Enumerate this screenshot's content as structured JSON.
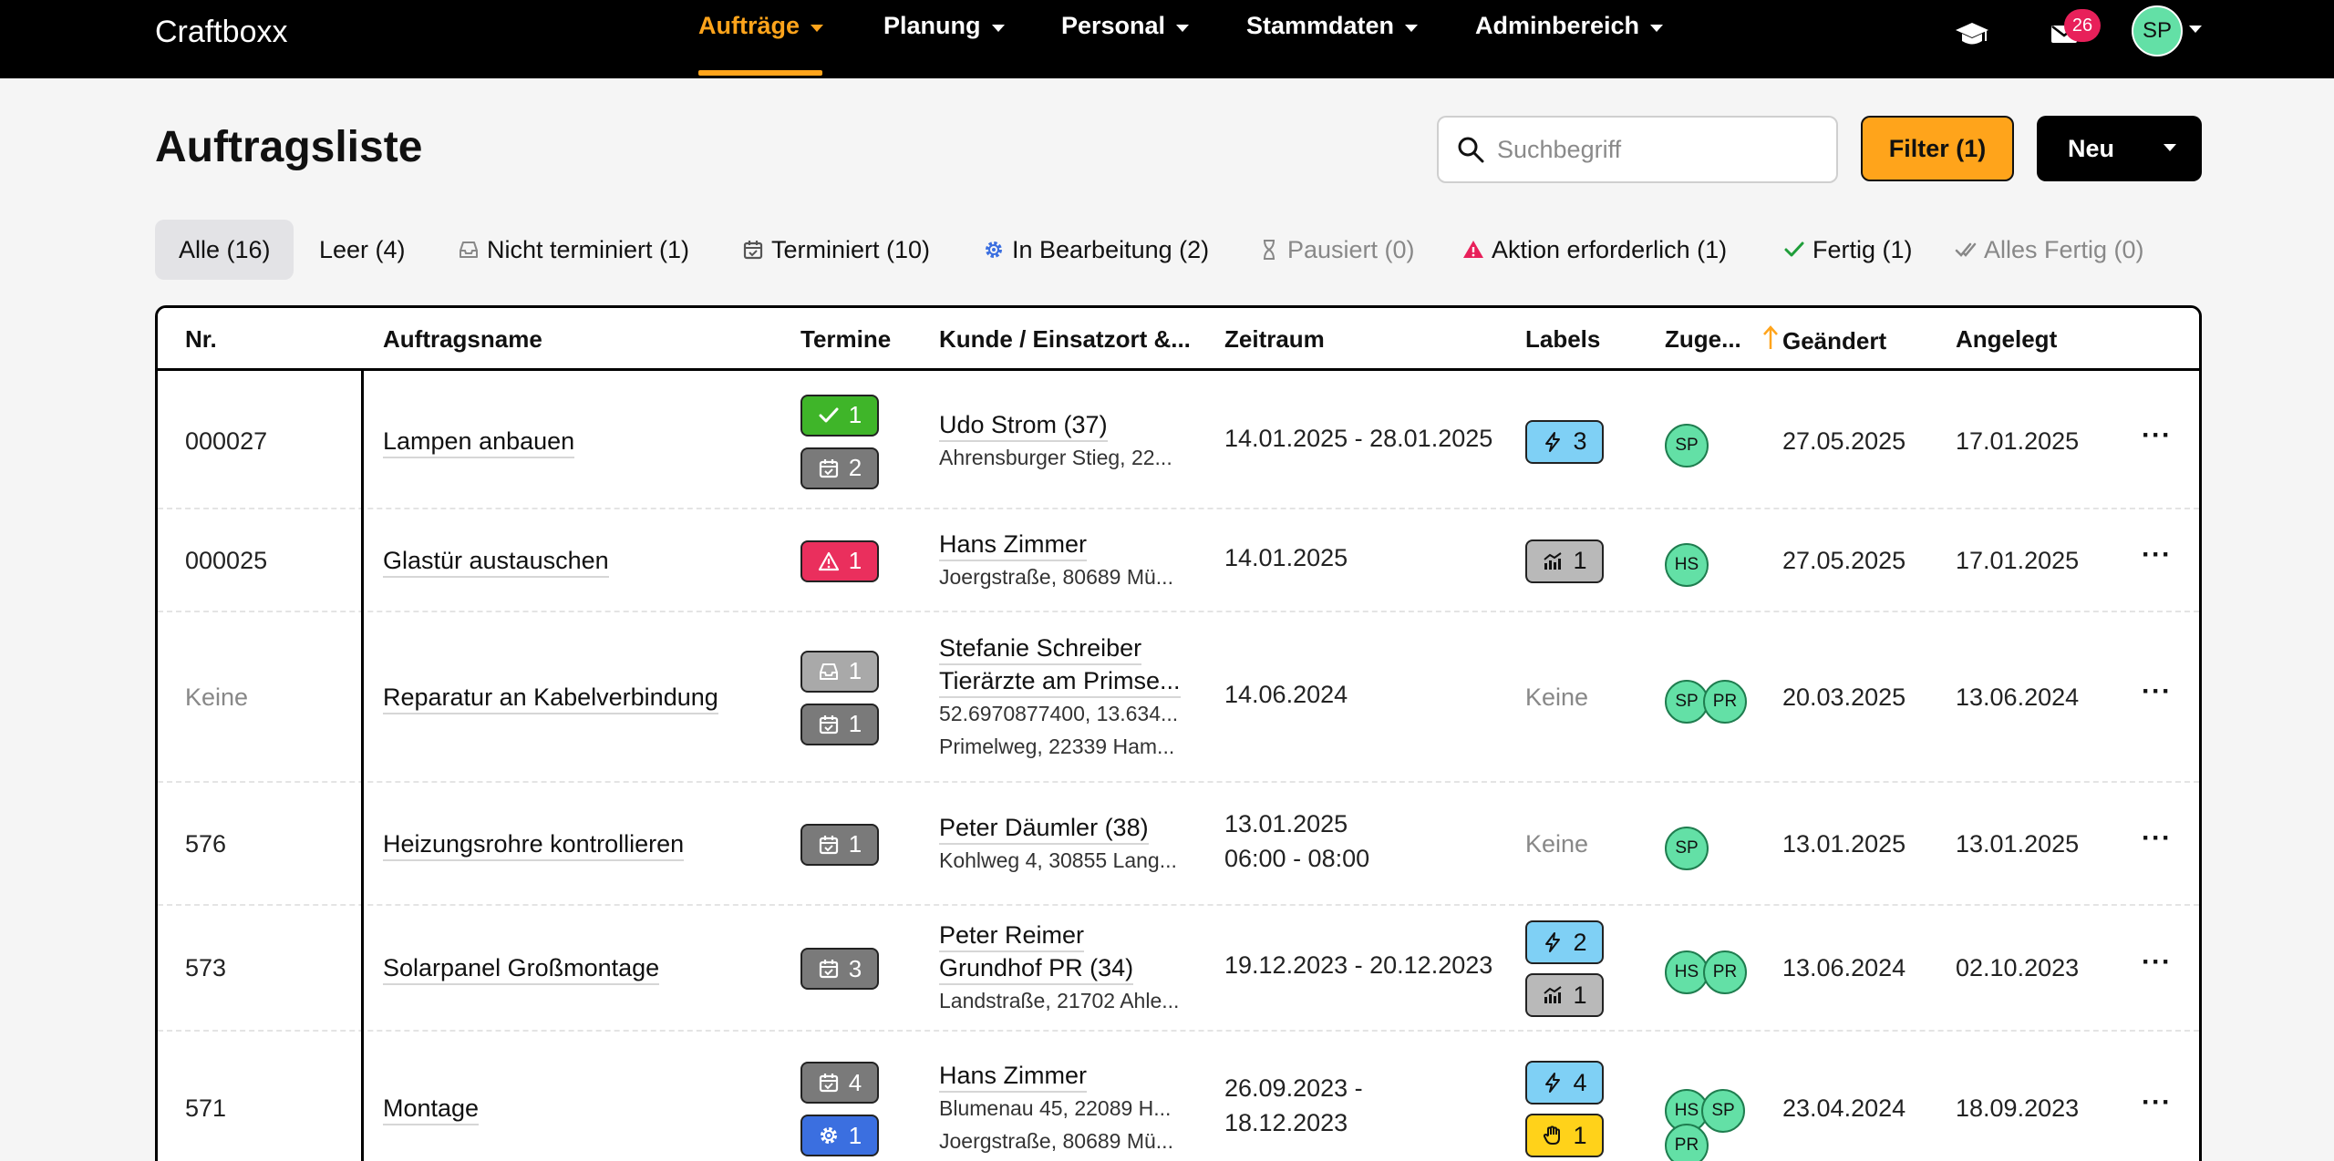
{
  "app": {
    "brand": "Craftboxx"
  },
  "nav": {
    "items": [
      {
        "label": "Aufträge",
        "active": true
      },
      {
        "label": "Planung"
      },
      {
        "label": "Personal"
      },
      {
        "label": "Stammdaten"
      },
      {
        "label": "Adminbereich"
      }
    ],
    "icons": [
      "graduation-cap-icon",
      "mail-icon"
    ],
    "mail_count": "26",
    "user_initials": "SP"
  },
  "header": {
    "title": "Auftragsliste",
    "search_placeholder": "Suchbegriff",
    "filter_label": "Filter (1)",
    "new_label": "Neu"
  },
  "status_tabs": [
    {
      "label": "Alle (16)",
      "icon": "",
      "selected": true
    },
    {
      "label": "Leer (4)",
      "icon": ""
    },
    {
      "label": "Nicht terminiert (1)",
      "icon": "inbox-icon"
    },
    {
      "label": "Terminiert (10)",
      "icon": "calendar-check-icon"
    },
    {
      "label": "In Bearbeitung (2)",
      "icon": "gear-icon"
    },
    {
      "label": "Pausiert (0)",
      "icon": "hourglass-icon",
      "muted": true
    },
    {
      "label": "Aktion erforderlich (1)",
      "icon": "warning-icon"
    },
    {
      "label": "Fertig (1)",
      "icon": "check-icon"
    },
    {
      "label": "Alles Fertig (0)",
      "icon": "double-check-icon",
      "muted": true
    }
  ],
  "table": {
    "columns": [
      "Nr.",
      "Auftragsname",
      "Termine",
      "Kunde / Einsatzort &...",
      "Zeitraum",
      "Labels",
      "Zuge...",
      "Geändert",
      "Angelegt"
    ],
    "sort_column": "Geändert",
    "rows": [
      {
        "nr": "000027",
        "name": "Lampen anbauen",
        "appointments": [
          {
            "icon": "check-icon",
            "count": "1",
            "color": "#3fb529"
          },
          {
            "icon": "calendar-check-icon",
            "count": "2",
            "color": "#7a7a7a"
          }
        ],
        "customer": [
          "Udo Strom (37)"
        ],
        "address": [
          "Ahrensburger Stieg, 22..."
        ],
        "period": [
          "14.01.2025 - 28.01.2025"
        ],
        "labels": [
          {
            "icon": "bolt-icon",
            "count": "3",
            "color": "#7fd0f5"
          }
        ],
        "assignees": [
          "SP"
        ],
        "changed": "27.05.2025",
        "created": "17.01.2025"
      },
      {
        "nr": "000025",
        "name": "Glastür austauschen",
        "appointments": [
          {
            "icon": "warning-icon",
            "count": "1",
            "color": "#ea2f5d"
          }
        ],
        "customer": [
          "Hans Zimmer"
        ],
        "address": [
          "Joergstraße, 80689 Mü..."
        ],
        "period": [
          "14.01.2025"
        ],
        "labels": [
          {
            "icon": "chart-icon",
            "count": "1",
            "color": "#b9b9b9"
          }
        ],
        "assignees": [
          "HS"
        ],
        "changed": "27.05.2025",
        "created": "17.01.2025"
      },
      {
        "nr": "Keine",
        "nr_muted": true,
        "name": "Reparatur an Kabelverbindung",
        "appointments": [
          {
            "icon": "inbox-icon",
            "count": "1",
            "color": "#a9a9a9"
          },
          {
            "icon": "calendar-check-icon",
            "count": "1",
            "color": "#7a7a7a"
          }
        ],
        "customer": [
          "Stefanie Schreiber",
          "Tierärzte am Primse..."
        ],
        "address": [
          "52.6970877400, 13.634...",
          "Primelweg, 22339 Ham..."
        ],
        "period": [
          "14.06.2024"
        ],
        "labels": [],
        "labels_empty": "Keine",
        "assignees": [
          "SP",
          "PR"
        ],
        "changed": "20.03.2025",
        "created": "13.06.2024"
      },
      {
        "nr": "576",
        "name": "Heizungsrohre kontrollieren",
        "appointments": [
          {
            "icon": "calendar-check-icon",
            "count": "1",
            "color": "#7a7a7a"
          }
        ],
        "customer": [
          "Peter Däumler (38)"
        ],
        "address": [
          "Kohlweg 4, 30855 Lang..."
        ],
        "period": [
          "13.01.2025",
          "06:00 - 08:00"
        ],
        "labels": [],
        "labels_empty": "Keine",
        "assignees": [
          "SP"
        ],
        "changed": "13.01.2025",
        "created": "13.01.2025"
      },
      {
        "nr": "573",
        "name": "Solarpanel Großmontage",
        "appointments": [
          {
            "icon": "calendar-check-icon",
            "count": "3",
            "color": "#7a7a7a"
          }
        ],
        "customer": [
          "Peter Reimer",
          "Grundhof PR (34)"
        ],
        "address": [
          "Landstraße, 21702 Ahle..."
        ],
        "period": [
          "19.12.2023 - 20.12.2023"
        ],
        "labels": [
          {
            "icon": "bolt-icon",
            "count": "2",
            "color": "#7fd0f5"
          },
          {
            "icon": "chart-icon",
            "count": "1",
            "color": "#b9b9b9"
          }
        ],
        "assignees": [
          "HS",
          "PR"
        ],
        "changed": "13.06.2024",
        "created": "02.10.2023"
      },
      {
        "nr": "571",
        "name": "Montage",
        "appointments": [
          {
            "icon": "calendar-check-icon",
            "count": "4",
            "color": "#7a7a7a"
          },
          {
            "icon": "gear-icon",
            "count": "1",
            "color": "#3b6fe0"
          }
        ],
        "customer": [
          "Hans Zimmer"
        ],
        "address": [
          "Blumenau 45, 22089 H...",
          "Joergstraße, 80689 Mü..."
        ],
        "period": [
          "26.09.2023 -",
          "18.12.2023"
        ],
        "labels": [
          {
            "icon": "bolt-icon",
            "count": "4",
            "color": "#7fd0f5"
          },
          {
            "icon": "hand-icon",
            "count": "1",
            "color": "#ffd21a"
          }
        ],
        "assignees": [
          "HS",
          "SP",
          "PR"
        ],
        "changed": "23.04.2024",
        "created": "18.09.2023"
      }
    ]
  }
}
